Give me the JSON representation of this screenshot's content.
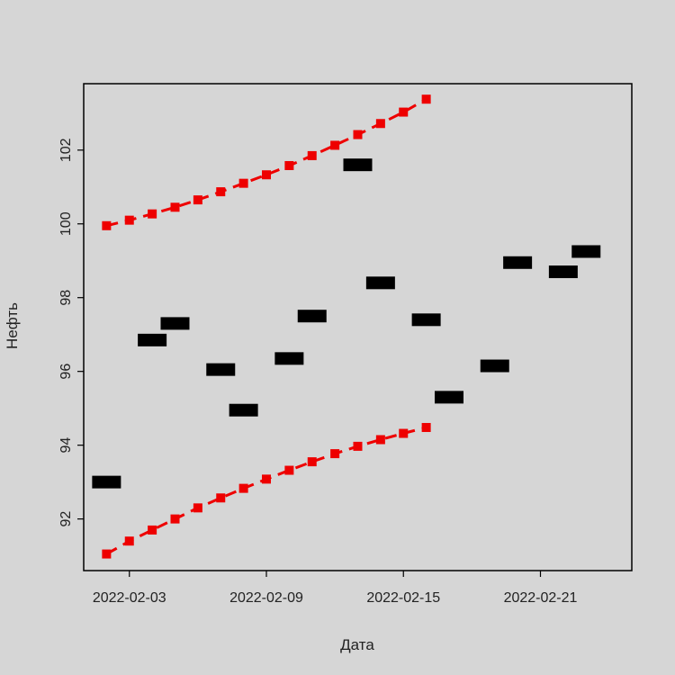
{
  "chart_data": {
    "type": "scatter",
    "title": "",
    "xlabel": "Дата",
    "ylabel": "Нефть",
    "xlim": [
      "2022-02-01",
      "2022-02-25"
    ],
    "ylim": [
      90.6,
      103.8
    ],
    "y_ticks": [
      92,
      94,
      96,
      98,
      100,
      102
    ],
    "x_ticks": [
      "2022-02-03",
      "2022-02-09",
      "2022-02-15",
      "2022-02-21"
    ],
    "grid": false,
    "legend": "none",
    "series": [
      {
        "style": "black-bars",
        "color": "#000000",
        "points": [
          {
            "x": "2022-02-02",
            "y": 93.0
          },
          {
            "x": "2022-02-04",
            "y": 96.85
          },
          {
            "x": "2022-02-05",
            "y": 97.3
          },
          {
            "x": "2022-02-07",
            "y": 96.05
          },
          {
            "x": "2022-02-08",
            "y": 94.95
          },
          {
            "x": "2022-02-10",
            "y": 96.35
          },
          {
            "x": "2022-02-11",
            "y": 97.5
          },
          {
            "x": "2022-02-13",
            "y": 101.6
          },
          {
            "x": "2022-02-14",
            "y": 98.4
          },
          {
            "x": "2022-02-16",
            "y": 97.4
          },
          {
            "x": "2022-02-17",
            "y": 95.3
          },
          {
            "x": "2022-02-19",
            "y": 96.15
          },
          {
            "x": "2022-02-20",
            "y": 98.95
          },
          {
            "x": "2022-02-22",
            "y": 98.7
          },
          {
            "x": "2022-02-23",
            "y": 99.25
          }
        ]
      },
      {
        "style": "red-dashed-squares",
        "color": "#ee0000",
        "points": [
          {
            "x": "2022-02-02",
            "y": 99.95
          },
          {
            "x": "2022-02-03",
            "y": 100.1
          },
          {
            "x": "2022-02-04",
            "y": 100.27
          },
          {
            "x": "2022-02-05",
            "y": 100.45
          },
          {
            "x": "2022-02-06",
            "y": 100.65
          },
          {
            "x": "2022-02-07",
            "y": 100.87
          },
          {
            "x": "2022-02-08",
            "y": 101.1
          },
          {
            "x": "2022-02-09",
            "y": 101.33
          },
          {
            "x": "2022-02-10",
            "y": 101.58
          },
          {
            "x": "2022-02-11",
            "y": 101.85
          },
          {
            "x": "2022-02-12",
            "y": 102.13
          },
          {
            "x": "2022-02-13",
            "y": 102.42
          },
          {
            "x": "2022-02-14",
            "y": 102.72
          },
          {
            "x": "2022-02-15",
            "y": 103.03
          },
          {
            "x": "2022-02-16",
            "y": 103.38
          }
        ]
      },
      {
        "style": "red-dashed-squares",
        "color": "#ee0000",
        "points": [
          {
            "x": "2022-02-02",
            "y": 91.05
          },
          {
            "x": "2022-02-03",
            "y": 91.4
          },
          {
            "x": "2022-02-04",
            "y": 91.7
          },
          {
            "x": "2022-02-05",
            "y": 92.0
          },
          {
            "x": "2022-02-06",
            "y": 92.3
          },
          {
            "x": "2022-02-07",
            "y": 92.57
          },
          {
            "x": "2022-02-08",
            "y": 92.83
          },
          {
            "x": "2022-02-09",
            "y": 93.08
          },
          {
            "x": "2022-02-10",
            "y": 93.32
          },
          {
            "x": "2022-02-11",
            "y": 93.55
          },
          {
            "x": "2022-02-12",
            "y": 93.77
          },
          {
            "x": "2022-02-13",
            "y": 93.97
          },
          {
            "x": "2022-02-14",
            "y": 94.15
          },
          {
            "x": "2022-02-15",
            "y": 94.32
          },
          {
            "x": "2022-02-16",
            "y": 94.48
          }
        ]
      }
    ]
  }
}
